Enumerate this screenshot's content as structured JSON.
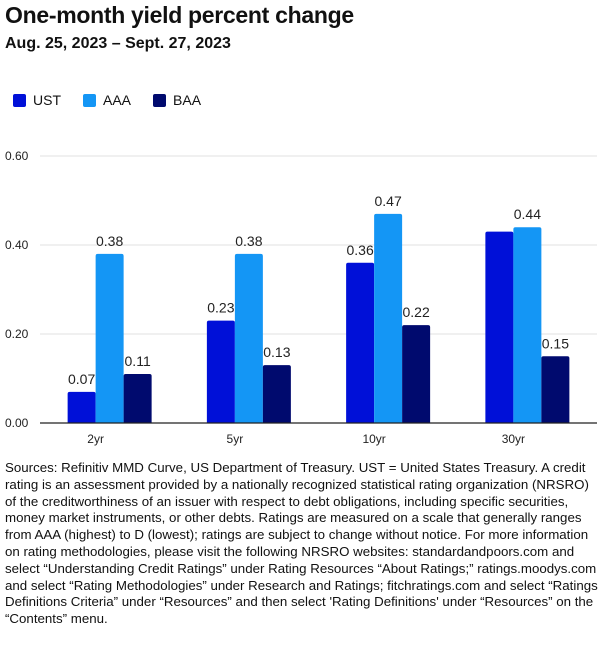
{
  "chart_data": {
    "type": "bar",
    "title": "One-month yield percent change",
    "subtitle": "Aug. 25, 2023 – Sept. 27, 2023",
    "categories": [
      "2yr",
      "5yr",
      "10yr",
      "30yr"
    ],
    "series": [
      {
        "name": "UST",
        "color": "#0010d8",
        "values": [
          0.07,
          0.23,
          0.36,
          0.43
        ],
        "labels": [
          "0.07",
          "0.23",
          "0.36",
          null
        ]
      },
      {
        "name": "AAA",
        "color": "#1496f5",
        "values": [
          0.38,
          0.38,
          0.47,
          0.44
        ],
        "labels": [
          "0.38",
          "0.38",
          "0.47",
          "0.44"
        ]
      },
      {
        "name": "BAA",
        "color": "#000a6e",
        "values": [
          0.11,
          0.13,
          0.22,
          0.15
        ],
        "labels": [
          "0.11",
          "0.13",
          "0.22",
          "0.15"
        ]
      }
    ],
    "yticks": [
      "0.00",
      "0.20",
      "0.40",
      "0.60"
    ],
    "ylim": [
      0,
      0.6
    ],
    "grid": true,
    "legend": "top-left",
    "xlabel": "",
    "ylabel": ""
  },
  "notes": "Sources: Refinitiv MMD Curve, US Department of Treasury. UST = United States Treasury. A credit rating is an assessment provided by a nationally recognized statistical rating organization (NRSRO) of the creditworthiness of an issuer with respect to debt obligations, including specific securities, money market instruments, or other debts. Ratings are measured on a scale that generally ranges from AAA (highest) to D (lowest); ratings are subject to change without notice. For more information on rating methodologies, please visit the following NRSRO websites: standardandpoors.com and select “Understanding Credit Ratings” under Rating Resources “About Ratings;” ratings.moodys.com and select “Rating Methodologies” under Research and Ratings; fitchratings.com and select “Ratings Definitions Criteria” under “Resources” and then select 'Rating Definitions' under “Resources” on the “Contents” menu."
}
